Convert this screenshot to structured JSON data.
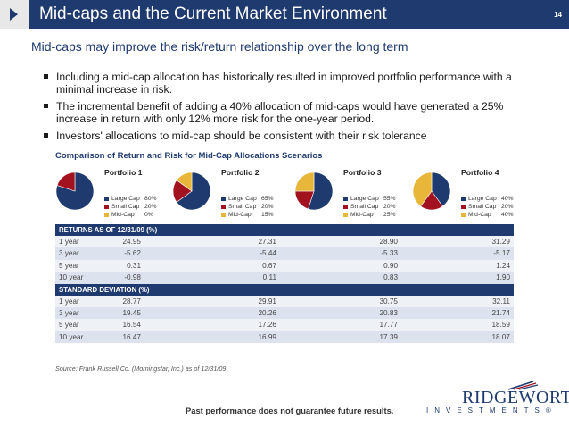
{
  "header": {
    "title": "Mid-caps and the Current Market Environment",
    "page_number": "14"
  },
  "subtitle": "Mid-caps may improve the risk/return relationship over the long term",
  "bullets": [
    "Including a mid-cap allocation has historically resulted in improved portfolio performance with a minimal increase in risk.",
    "The incremental benefit of adding a 40% allocation of mid-caps would have generated a 25% increase in return with only 12% more risk for the one-year period.",
    "Investors' allocations to mid-cap should be consistent with their risk tolerance"
  ],
  "chart_data": {
    "type": "pie",
    "title": "Comparison of Return and Risk for Mid-Cap Allocations Scenarios",
    "categories": [
      "Large Cap",
      "Small Cap",
      "Mid-Cap"
    ],
    "colors": [
      "#1e3a6e",
      "#a3131f",
      "#e8b73a"
    ],
    "portfolios": [
      {
        "name": "Portfolio 1",
        "values": [
          80,
          20,
          0
        ],
        "labels": [
          "80%",
          "20%",
          "0%"
        ]
      },
      {
        "name": "Portfolio 2",
        "values": [
          65,
          20,
          15
        ],
        "labels": [
          "65%",
          "20%",
          "15%"
        ]
      },
      {
        "name": "Portfolio 3",
        "values": [
          55,
          20,
          25
        ],
        "labels": [
          "55%",
          "20%",
          "25%"
        ]
      },
      {
        "name": "Portfolio 4",
        "values": [
          40,
          20,
          40
        ],
        "labels": [
          "40%",
          "20%",
          "40%"
        ]
      }
    ]
  },
  "table": {
    "returns_header": "RETURNS AS OF 12/31/09 (%)",
    "returns_rows": [
      [
        "1 year",
        "24.95",
        "27.31",
        "28.90",
        "31.29"
      ],
      [
        "3 year",
        "-5.62",
        "-5.44",
        "-5.33",
        "-5.17"
      ],
      [
        "5 year",
        "0.31",
        "0.67",
        "0.90",
        "1.24"
      ],
      [
        "10 year",
        "-0.98",
        "0.11",
        "0.83",
        "1.90"
      ]
    ],
    "stdev_header": "STANDARD DEVIATION (%)",
    "stdev_rows": [
      [
        "1 year",
        "28.77",
        "29.91",
        "30.75",
        "32.11"
      ],
      [
        "3 year",
        "19.45",
        "20.26",
        "20.83",
        "21.74"
      ],
      [
        "5 year",
        "16.54",
        "17.26",
        "17.77",
        "18.59"
      ],
      [
        "10 year",
        "16.47",
        "16.99",
        "17.39",
        "18.07"
      ]
    ]
  },
  "source": "Source: Frank Russell Co. (Morningstar, Inc.) as of 12/31/09",
  "disclaimer": "Past performance does not guarantee future results.",
  "logo": {
    "name": "RIDGEWORTH",
    "sub": "INVESTMENTS®"
  }
}
